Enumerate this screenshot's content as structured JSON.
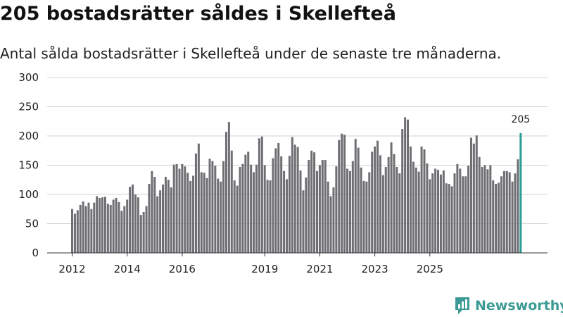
{
  "header": {
    "title": "205 bostadsrätter såldes i Skellefteå",
    "subtitle": "Antal sålda bostadsrätter i Skellefteå under de senaste tre månaderna."
  },
  "brand": {
    "name": "Newsworthy"
  },
  "colors": {
    "bar": "#6f6e73",
    "highlight": "#2a9d95",
    "grid": "#d2d2d2",
    "brand": "#3b9a94"
  },
  "chart_data": {
    "type": "bar",
    "title": "205 bostadsrätter såldes i Skellefteå",
    "subtitle": "Antal sålda bostadsrätter i Skellefteå under de senaste tre månaderna.",
    "xlabel": "",
    "ylabel": "",
    "ylim": [
      0,
      300
    ],
    "yticks": [
      0,
      50,
      100,
      150,
      200,
      250,
      300
    ],
    "xticks": [
      {
        "label": "2012",
        "index": 0
      },
      {
        "label": "2014",
        "index": 20
      },
      {
        "label": "2016",
        "index": 40
      },
      {
        "label": "2019",
        "index": 70
      },
      {
        "label": "2021",
        "index": 90
      },
      {
        "label": "2023",
        "index": 110
      },
      {
        "label": "2025",
        "index": 130
      }
    ],
    "values": [
      75,
      67,
      73,
      82,
      88,
      80,
      86,
      75,
      86,
      97,
      94,
      95,
      96,
      84,
      82,
      91,
      94,
      87,
      72,
      80,
      91,
      113,
      117,
      100,
      95,
      65,
      70,
      80,
      118,
      140,
      130,
      97,
      107,
      117,
      130,
      125,
      112,
      151,
      152,
      144,
      152,
      148,
      137,
      123,
      132,
      170,
      187,
      138,
      137,
      128,
      161,
      157,
      149,
      127,
      122,
      157,
      207,
      224,
      175,
      124,
      115,
      147,
      152,
      168,
      173,
      151,
      138,
      151,
      196,
      199,
      150,
      125,
      124,
      162,
      179,
      188,
      165,
      140,
      126,
      166,
      198,
      185,
      181,
      141,
      107,
      129,
      159,
      175,
      172,
      140,
      150,
      159,
      159,
      122,
      97,
      112,
      148,
      193,
      204,
      202,
      144,
      140,
      157,
      195,
      180,
      146,
      123,
      122,
      138,
      173,
      182,
      192,
      167,
      133,
      147,
      164,
      189,
      169,
      147,
      136,
      212,
      232,
      228,
      182,
      156,
      146,
      139,
      182,
      177,
      153,
      126,
      136,
      144,
      142,
      134,
      141,
      119,
      118,
      114,
      136,
      152,
      144,
      131,
      131,
      149,
      197,
      187,
      201,
      164,
      147,
      150,
      143,
      150,
      124,
      118,
      120,
      131,
      140,
      140,
      138,
      122,
      136,
      160,
      205
    ],
    "highlight": {
      "index": 163,
      "value": 205,
      "label": "205"
    }
  }
}
